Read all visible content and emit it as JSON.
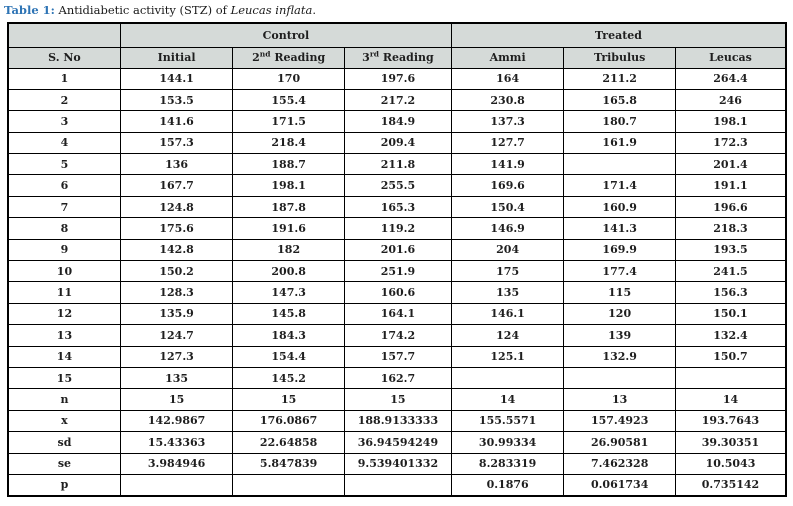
{
  "caption": {
    "label": "Table 1:",
    "text": " Antidiabetic activity (STZ) of ",
    "species": "Leucas inflata",
    "suffix": "."
  },
  "table": {
    "group_headers": {
      "blank": "",
      "control": "Control",
      "treated": "Treated"
    },
    "columns": {
      "sno": "S. No",
      "initial": "Initial",
      "second": {
        "base": "2",
        "sup": "nd",
        "rest": " Reading"
      },
      "third": {
        "base": "3",
        "sup": "rd",
        "rest": " Reading"
      },
      "ammi": "Ammi",
      "tribulus": "Tribulus",
      "leucas": "Leucas"
    },
    "rows": [
      [
        "1",
        "144.1",
        "170",
        "197.6",
        "164",
        "211.2",
        "264.4"
      ],
      [
        "2",
        "153.5",
        "155.4",
        "217.2",
        "230.8",
        "165.8",
        "246"
      ],
      [
        "3",
        "141.6",
        "171.5",
        "184.9",
        "137.3",
        "180.7",
        "198.1"
      ],
      [
        "4",
        "157.3",
        "218.4",
        "209.4",
        "127.7",
        "161.9",
        "172.3"
      ],
      [
        "5",
        "136",
        "188.7",
        "211.8",
        "141.9",
        "",
        "201.4"
      ],
      [
        "6",
        "167.7",
        "198.1",
        "255.5",
        "169.6",
        "171.4",
        "191.1"
      ],
      [
        "7",
        "124.8",
        "187.8",
        "165.3",
        "150.4",
        "160.9",
        "196.6"
      ],
      [
        "8",
        "175.6",
        "191.6",
        "119.2",
        "146.9",
        "141.3",
        "218.3"
      ],
      [
        "9",
        "142.8",
        "182",
        "201.6",
        "204",
        "169.9",
        "193.5"
      ],
      [
        "10",
        "150.2",
        "200.8",
        "251.9",
        "175",
        "177.4",
        "241.5"
      ],
      [
        "11",
        "128.3",
        "147.3",
        "160.6",
        "135",
        "115",
        "156.3"
      ],
      [
        "12",
        "135.9",
        "145.8",
        "164.1",
        "146.1",
        "120",
        "150.1"
      ],
      [
        "13",
        "124.7",
        "184.3",
        "174.2",
        "124",
        "139",
        "132.4"
      ],
      [
        "14",
        "127.3",
        "154.4",
        "157.7",
        "125.1",
        "132.9",
        "150.7"
      ],
      [
        "15",
        "135",
        "145.2",
        "162.7",
        "",
        "",
        ""
      ]
    ],
    "stats": [
      [
        "n",
        "15",
        "15",
        "15",
        "14",
        "13",
        "14"
      ],
      [
        "x",
        "142.9867",
        "176.0867",
        "188.9133333",
        "155.5571",
        "157.4923",
        "193.7643"
      ],
      [
        "sd",
        "15.43363",
        "22.64858",
        "36.94594249",
        "30.99334",
        "26.90581",
        "39.30351"
      ],
      [
        "se",
        "3.984946",
        "5.847839",
        "9.539401332",
        "8.283319",
        "7.462328",
        "10.5043"
      ],
      [
        "p",
        "",
        "",
        "",
        "0.1876",
        "0.061734",
        "0.735142"
      ]
    ]
  },
  "colors": {
    "caption_accent": "#2e74b5",
    "header_bg": "#d5dad8",
    "border": "#000000",
    "text": "#1f1f1f"
  }
}
